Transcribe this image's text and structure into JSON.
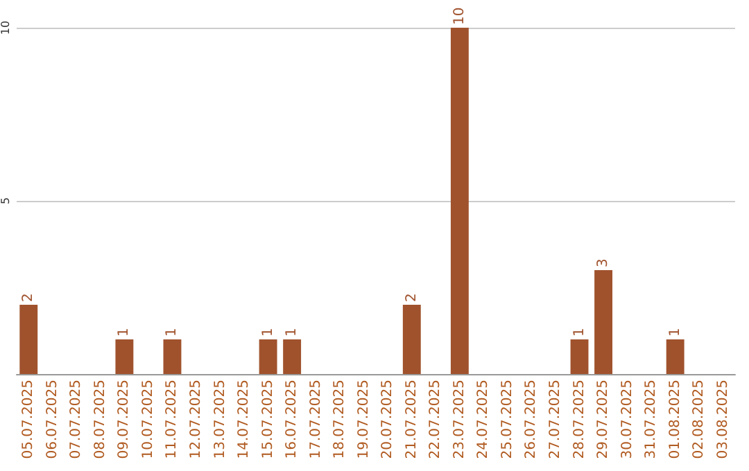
{
  "chart_data": {
    "type": "bar",
    "categories": [
      "05.07.2025",
      "06.07.2025",
      "07.07.2025",
      "08.07.2025",
      "09.07.2025",
      "10.07.2025",
      "11.07.2025",
      "12.07.2025",
      "13.07.2025",
      "14.07.2025",
      "15.07.2025",
      "16.07.2025",
      "17.07.2025",
      "18.07.2025",
      "19.07.2025",
      "20.07.2025",
      "21.07.2025",
      "22.07.2025",
      "23.07.2025",
      "24.07.2025",
      "25.07.2025",
      "26.07.2025",
      "27.07.2025",
      "28.07.2025",
      "29.07.2025",
      "30.07.2025",
      "31.07.2025",
      "01.08.2025",
      "02.08.2025",
      "03.08.2025"
    ],
    "values": [
      2,
      0,
      0,
      0,
      1,
      0,
      1,
      0,
      0,
      0,
      1,
      1,
      0,
      0,
      0,
      0,
      2,
      0,
      10,
      0,
      0,
      0,
      0,
      1,
      3,
      0,
      0,
      1,
      0,
      0
    ],
    "value_labels": [
      "2",
      null,
      null,
      null,
      "1",
      null,
      "1",
      null,
      null,
      null,
      "1",
      "1",
      null,
      null,
      null,
      null,
      "2",
      null,
      "10",
      null,
      null,
      null,
      null,
      "1",
      "3",
      null,
      null,
      "1",
      null,
      null
    ],
    "color": "#a0522d",
    "ylim": [
      0,
      10
    ],
    "yticks": [
      5,
      10
    ],
    "grid": "y"
  }
}
